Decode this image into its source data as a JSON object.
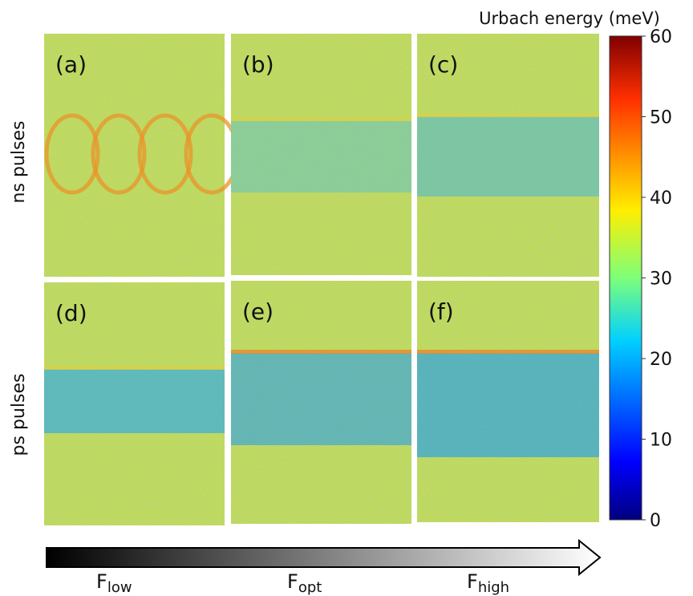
{
  "colorbar": {
    "title": "Urbach energy (meV)",
    "range": [
      0,
      60
    ],
    "ticks": [
      0,
      10,
      20,
      30,
      40,
      50,
      60
    ]
  },
  "rows": [
    {
      "label": "ns pulses"
    },
    {
      "label": "ps pulses"
    }
  ],
  "panels": [
    {
      "label": "(a)"
    },
    {
      "label": "(b)"
    },
    {
      "label": "(c)"
    },
    {
      "label": "(d)"
    },
    {
      "label": "(e)"
    },
    {
      "label": "(f)"
    }
  ],
  "fluence_axis": {
    "labels": [
      {
        "main": "F",
        "sub": "low"
      },
      {
        "main": "F",
        "sub": "opt"
      },
      {
        "main": "F",
        "sub": "high"
      }
    ]
  }
}
